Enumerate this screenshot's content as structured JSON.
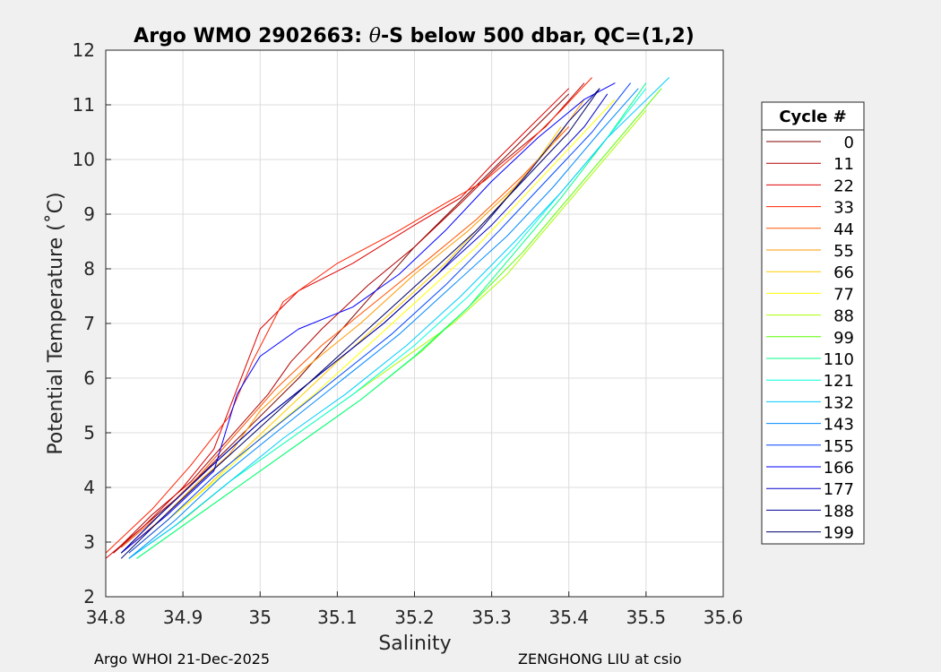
{
  "chart_data": {
    "type": "line",
    "title_prefix": "Argo WMO 2902663: ",
    "title_theta": "θ",
    "title_suffix": "-S below 500 dbar,  QC=(1,2)",
    "xlabel": "Salinity",
    "ylabel": "Potential Temperature (˚C)",
    "xlim": [
      34.8,
      35.6
    ],
    "ylim": [
      2,
      12
    ],
    "xticks": [
      "34.8",
      "34.9",
      "35",
      "35.1",
      "35.2",
      "35.3",
      "35.4",
      "35.5",
      "35.6"
    ],
    "yticks": [
      "2",
      "3",
      "4",
      "5",
      "6",
      "7",
      "8",
      "9",
      "10",
      "11",
      "12"
    ],
    "grid": true,
    "legend_position": "right",
    "legend": {
      "title": "Cycle #",
      "entries": [
        {
          "label": "0",
          "color": "#800000"
        },
        {
          "label": "11",
          "color": "#b30000"
        },
        {
          "label": "22",
          "color": "#dd0000"
        },
        {
          "label": "33",
          "color": "#ff2200"
        },
        {
          "label": "44",
          "color": "#ff5500"
        },
        {
          "label": "55",
          "color": "#ff9900"
        },
        {
          "label": "66",
          "color": "#ffcc00"
        },
        {
          "label": "77",
          "color": "#ffff00"
        },
        {
          "label": "88",
          "color": "#aaff00"
        },
        {
          "label": "99",
          "color": "#55ff00"
        },
        {
          "label": "110",
          "color": "#00ff88"
        },
        {
          "label": "121",
          "color": "#00ffdd"
        },
        {
          "label": "132",
          "color": "#00ccff"
        },
        {
          "label": "143",
          "color": "#0088ff"
        },
        {
          "label": "155",
          "color": "#0044ff"
        },
        {
          "label": "166",
          "color": "#0000ff"
        },
        {
          "label": "177",
          "color": "#0000cc"
        },
        {
          "label": "188",
          "color": "#000099"
        },
        {
          "label": "199",
          "color": "#000066"
        }
      ]
    },
    "series": [
      {
        "name": "0",
        "color": "#800000",
        "x": [
          34.81,
          34.85,
          34.9,
          34.95,
          35.0,
          35.05,
          35.1,
          35.15,
          35.2,
          35.25,
          35.3,
          35.35,
          35.4
        ],
        "y": [
          2.8,
          3.3,
          3.9,
          4.6,
          5.3,
          6.0,
          6.8,
          7.6,
          8.4,
          9.1,
          9.8,
          10.5,
          11.2
        ]
      },
      {
        "name": "11",
        "color": "#b30000",
        "x": [
          34.81,
          34.86,
          34.91,
          34.96,
          35.01,
          35.04,
          35.08,
          35.14,
          35.2,
          35.26,
          35.31,
          35.37,
          35.42
        ],
        "y": [
          2.8,
          3.5,
          4.1,
          4.9,
          5.7,
          6.3,
          6.9,
          7.7,
          8.4,
          9.2,
          9.9,
          10.6,
          11.4
        ]
      },
      {
        "name": "22",
        "color": "#dd0000",
        "x": [
          34.8,
          34.85,
          34.9,
          34.94,
          34.97,
          35.0,
          35.05,
          35.12,
          35.2,
          35.26,
          35.3,
          35.35,
          35.4
        ],
        "y": [
          2.7,
          3.3,
          4.0,
          4.7,
          5.8,
          6.9,
          7.6,
          8.1,
          8.8,
          9.3,
          9.9,
          10.6,
          11.3
        ]
      },
      {
        "name": "33",
        "color": "#ff2200",
        "x": [
          34.8,
          34.86,
          34.91,
          34.96,
          34.99,
          35.03,
          35.1,
          35.18,
          35.24,
          35.29,
          35.34,
          35.39,
          35.43
        ],
        "y": [
          2.8,
          3.6,
          4.4,
          5.3,
          6.3,
          7.4,
          8.1,
          8.7,
          9.2,
          9.6,
          10.2,
          10.9,
          11.5
        ]
      },
      {
        "name": "44",
        "color": "#ff5500",
        "x": [
          34.82,
          34.87,
          34.92,
          34.97,
          35.02,
          35.08,
          35.15,
          35.22,
          35.28,
          35.34,
          35.4
        ],
        "y": [
          2.9,
          3.5,
          4.2,
          5.0,
          5.8,
          6.6,
          7.4,
          8.2,
          8.9,
          9.7,
          10.6
        ]
      },
      {
        "name": "55",
        "color": "#ff9900",
        "x": [
          34.82,
          34.87,
          34.92,
          34.96,
          35.0,
          35.06,
          35.13,
          35.2,
          35.27,
          35.33,
          35.38,
          35.42
        ],
        "y": [
          2.8,
          3.4,
          4.1,
          4.6,
          5.4,
          6.2,
          7.0,
          7.9,
          8.7,
          9.5,
          10.3,
          11.1
        ]
      },
      {
        "name": "66",
        "color": "#ffcc00",
        "x": [
          34.83,
          34.88,
          34.93,
          34.98,
          35.04,
          35.1,
          35.17,
          35.24,
          35.3,
          35.35,
          35.39
        ],
        "y": [
          2.8,
          3.4,
          4.0,
          4.7,
          5.5,
          6.3,
          7.2,
          8.1,
          9.0,
          9.8,
          10.6
        ]
      },
      {
        "name": "77",
        "color": "#ffff00",
        "x": [
          34.83,
          34.88,
          34.94,
          35.0,
          35.07,
          35.14,
          35.21,
          35.28,
          35.34,
          35.4,
          35.46
        ],
        "y": [
          2.8,
          3.4,
          4.1,
          4.9,
          5.7,
          6.6,
          7.5,
          8.4,
          9.3,
          10.2,
          11.1
        ]
      },
      {
        "name": "88",
        "color": "#aaff00",
        "x": [
          34.84,
          34.9,
          34.96,
          35.03,
          35.1,
          35.18,
          35.25,
          35.32,
          35.38,
          35.44,
          35.5
        ],
        "y": [
          2.8,
          3.4,
          4.1,
          4.8,
          5.5,
          6.3,
          7.0,
          7.9,
          8.9,
          9.9,
          10.9
        ]
      },
      {
        "name": "99",
        "color": "#55ff00",
        "x": [
          34.84,
          34.9,
          34.97,
          35.05,
          35.13,
          35.21,
          35.27,
          35.34,
          35.4,
          35.46,
          35.52
        ],
        "y": [
          2.7,
          3.3,
          4.0,
          4.8,
          5.6,
          6.5,
          7.3,
          8.3,
          9.3,
          10.3,
          11.3
        ]
      },
      {
        "name": "110",
        "color": "#00ff88",
        "x": [
          34.84,
          34.9,
          34.97,
          35.05,
          35.13,
          35.2,
          35.27,
          35.33,
          35.39,
          35.45,
          35.5
        ],
        "y": [
          2.7,
          3.3,
          4.0,
          4.8,
          5.6,
          6.4,
          7.3,
          8.3,
          9.3,
          10.4,
          11.4
        ]
      },
      {
        "name": "121",
        "color": "#00ffdd",
        "x": [
          34.83,
          34.89,
          34.96,
          35.04,
          35.12,
          35.2,
          35.27,
          35.33,
          35.39,
          35.45,
          35.5
        ],
        "y": [
          2.7,
          3.3,
          4.1,
          4.9,
          5.7,
          6.6,
          7.5,
          8.4,
          9.4,
          10.4,
          11.3
        ]
      },
      {
        "name": "132",
        "color": "#00ccff",
        "x": [
          34.83,
          34.89,
          34.96,
          35.03,
          35.11,
          35.19,
          35.26,
          35.33,
          35.39,
          35.45,
          35.53
        ],
        "y": [
          2.7,
          3.3,
          4.1,
          4.9,
          5.7,
          6.6,
          7.5,
          8.5,
          9.4,
          10.4,
          11.5
        ]
      },
      {
        "name": "143",
        "color": "#0088ff",
        "x": [
          34.83,
          34.89,
          34.95,
          35.02,
          35.1,
          35.18,
          35.25,
          35.32,
          35.38,
          35.44,
          35.49
        ],
        "y": [
          2.7,
          3.4,
          4.2,
          5.0,
          5.9,
          6.8,
          7.7,
          8.6,
          9.5,
          10.5,
          11.3
        ]
      },
      {
        "name": "155",
        "color": "#0044ff",
        "x": [
          34.83,
          34.88,
          34.94,
          35.01,
          35.09,
          35.17,
          35.24,
          35.31,
          35.37,
          35.43,
          35.48
        ],
        "y": [
          2.8,
          3.4,
          4.2,
          5.0,
          5.9,
          6.8,
          7.7,
          8.7,
          9.6,
          10.5,
          11.4
        ]
      },
      {
        "name": "166",
        "color": "#0000ff",
        "x": [
          34.82,
          34.88,
          34.94,
          34.97,
          35.0,
          35.05,
          35.12,
          35.18,
          35.24,
          35.3,
          35.36,
          35.42,
          35.46
        ],
        "y": [
          2.8,
          3.5,
          4.3,
          5.7,
          6.4,
          6.9,
          7.3,
          7.9,
          8.7,
          9.6,
          10.4,
          11.1,
          11.4
        ]
      },
      {
        "name": "177",
        "color": "#0000cc",
        "x": [
          34.82,
          34.87,
          34.93,
          35.0,
          35.08,
          35.16,
          35.23,
          35.3,
          35.36,
          35.42,
          35.45
        ],
        "y": [
          2.8,
          3.5,
          4.3,
          5.2,
          6.1,
          7.0,
          7.9,
          8.8,
          9.7,
          10.6,
          11.2
        ]
      },
      {
        "name": "188",
        "color": "#000099",
        "x": [
          34.82,
          34.87,
          34.93,
          35.0,
          35.08,
          35.16,
          35.23,
          35.29,
          35.35,
          35.4,
          35.44
        ],
        "y": [
          2.8,
          3.5,
          4.3,
          5.2,
          6.1,
          7.0,
          7.9,
          8.8,
          9.8,
          10.7,
          11.3
        ]
      },
      {
        "name": "199",
        "color": "#000066",
        "x": [
          34.82,
          34.87,
          34.93,
          35.0,
          35.07,
          35.14,
          35.21,
          35.28,
          35.34,
          35.4,
          35.44
        ],
        "y": [
          2.7,
          3.4,
          4.2,
          5.1,
          6.0,
          6.9,
          7.8,
          8.7,
          9.6,
          10.5,
          11.3
        ]
      }
    ]
  },
  "footer": {
    "left": "Argo WHOI 21-Dec-2025",
    "right": "ZENGHONG LIU at csio"
  }
}
